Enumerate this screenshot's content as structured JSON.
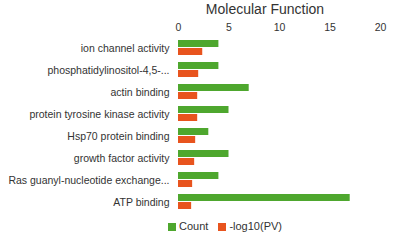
{
  "chart_data": {
    "type": "bar",
    "orientation": "horizontal",
    "title": "Molecular Function",
    "categories": [
      "ion channel activity",
      "phosphatidylinositol-4,5-...",
      "actin binding",
      "protein tyrosine kinase activity",
      "Hsp70 protein binding",
      "growth factor activity",
      "Ras guanyl-nucleotide exchange...",
      "ATP binding"
    ],
    "series": [
      {
        "name": "Count",
        "color": "#4ea72e",
        "values": [
          4,
          4,
          7,
          5,
          3,
          5,
          4,
          17
        ]
      },
      {
        "name": "-log10(PV)",
        "color": "#e8541e",
        "values": [
          2.4,
          2.0,
          1.9,
          1.9,
          1.7,
          1.6,
          1.4,
          1.3
        ]
      }
    ],
    "xlim": [
      0,
      20
    ],
    "xticks": [
      0,
      5,
      10,
      15,
      20
    ],
    "grid": false,
    "legend": "bottom"
  }
}
